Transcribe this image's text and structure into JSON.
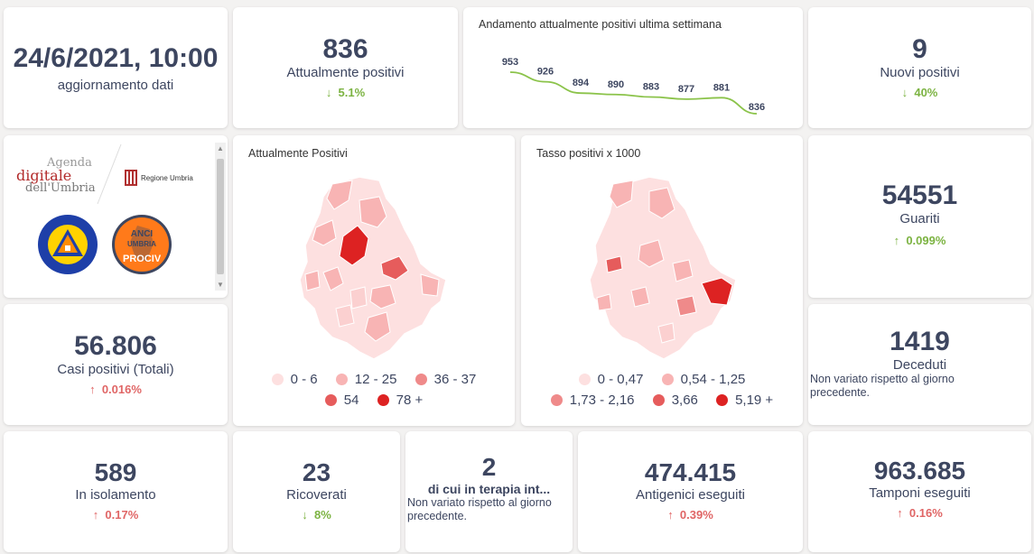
{
  "update": {
    "datetime": "24/6/2021, 10:00",
    "label": "aggiornamento dati"
  },
  "attuali": {
    "value": "836",
    "label": "Attualmente positivi",
    "delta": "5.1%",
    "direction": "down"
  },
  "trend": {
    "title": "Andamento attualmente positivi ultima settimana"
  },
  "nuovi": {
    "value": "9",
    "label": "Nuovi positivi",
    "delta": "40%",
    "direction": "down"
  },
  "logos": {
    "agenda_line1": "Agenda",
    "agenda_line2": "digitale",
    "agenda_line3": "dell'Umbria",
    "regione": "Regione Umbria",
    "pc_top": "Protezione Civile",
    "pc_bottom": "Regione Umbria",
    "anci_top": "ANCI",
    "anci_mid": "UMBRIA",
    "anci_bottom": "PROCIV"
  },
  "map1": {
    "title": "Attualmente Positivi",
    "legend": [
      "0 - 6",
      "12 - 25",
      "36 - 37",
      "54",
      "78 +"
    ]
  },
  "map2": {
    "title": "Tasso positivi x 1000",
    "legend": [
      "0 - 0,47",
      "0,54 - 1,25",
      "1,73 - 2,16",
      "3,66",
      "5,19 +"
    ]
  },
  "legend_colors": [
    "#fde0e0",
    "#f8b4b4",
    "#ef8a8a",
    "#e65c5c",
    "#dd2222"
  ],
  "guariti": {
    "value": "54551",
    "label": "Guariti",
    "delta": "0.099%",
    "direction": "up"
  },
  "casi": {
    "value": "56.806",
    "label": "Casi positivi (Totali)",
    "delta": "0.016%",
    "direction": "up"
  },
  "deceduti": {
    "value": "1419",
    "label": "Deceduti",
    "note": "Non variato rispetto al giorno precedente."
  },
  "isolamento": {
    "value": "589",
    "label": "In isolamento",
    "delta": "0.17%",
    "direction": "up"
  },
  "ricoverati": {
    "value": "23",
    "label": "Ricoverati",
    "delta": "8%",
    "direction": "down"
  },
  "terapia": {
    "value": "2",
    "label": "di cui in terapia int...",
    "note": "Non variato rispetto al giorno precedente."
  },
  "antigenici": {
    "value": "474.415",
    "label": "Antigenici eseguiti",
    "delta": "0.39%",
    "direction": "up"
  },
  "tamponi": {
    "value": "963.685",
    "label": "Tamponi eseguiti",
    "delta": "0.16%",
    "direction": "up"
  },
  "chart_data": {
    "type": "line",
    "title": "Andamento attualmente positivi ultima settimana",
    "values": [
      953,
      926,
      894,
      890,
      883,
      877,
      881,
      836
    ],
    "color": "#8bc34a"
  }
}
